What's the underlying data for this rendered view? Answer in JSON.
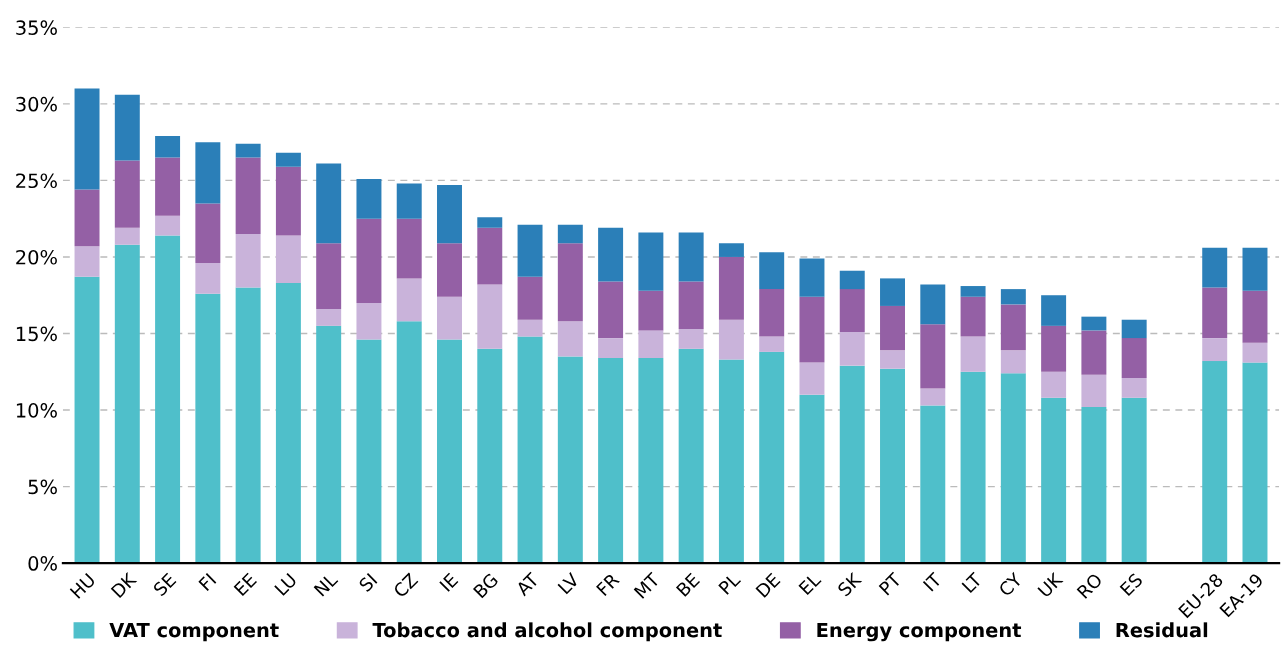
{
  "chart_data": {
    "type": "bar",
    "stacked": true,
    "categories": [
      "HU",
      "DK",
      "SE",
      "FI",
      "EE",
      "LU",
      "NL",
      "SI",
      "CZ",
      "IE",
      "BG",
      "AT",
      "LV",
      "FR",
      "MT",
      "BE",
      "PL",
      "DE",
      "EL",
      "SK",
      "PT",
      "IT",
      "LT",
      "CY",
      "UK",
      "RO",
      "ES",
      null,
      "EU-28",
      "EA-19"
    ],
    "series": [
      {
        "name": "VAT component",
        "color": "#4fbfca",
        "values": [
          18.7,
          20.8,
          21.4,
          17.6,
          18.0,
          18.3,
          15.5,
          14.6,
          15.8,
          14.6,
          14.0,
          14.8,
          13.5,
          13.4,
          13.4,
          14.0,
          13.3,
          13.8,
          11.0,
          12.9,
          12.7,
          10.3,
          12.5,
          12.4,
          10.8,
          10.2,
          10.8,
          null,
          13.2,
          13.1
        ]
      },
      {
        "name": "Tobacco and alcohol component",
        "color": "#c9b3da",
        "values": [
          2.0,
          1.1,
          1.3,
          2.0,
          3.5,
          3.1,
          1.1,
          2.4,
          2.8,
          2.8,
          4.2,
          1.1,
          2.3,
          1.3,
          1.8,
          1.3,
          2.6,
          1.0,
          2.1,
          2.2,
          1.2,
          1.1,
          2.3,
          1.5,
          1.7,
          2.1,
          1.3,
          null,
          1.5,
          1.3
        ]
      },
      {
        "name": "Energy component",
        "color": "#9460a5",
        "values": [
          3.7,
          4.4,
          3.8,
          3.9,
          5.0,
          4.5,
          4.3,
          5.5,
          3.9,
          3.5,
          3.7,
          2.8,
          5.1,
          3.7,
          2.6,
          3.1,
          4.1,
          3.1,
          4.3,
          2.8,
          2.9,
          4.2,
          2.6,
          3.0,
          3.0,
          2.9,
          2.6,
          null,
          3.3,
          3.4
        ]
      },
      {
        "name": "Residual",
        "color": "#2b7fb8",
        "values": [
          6.6,
          4.3,
          1.4,
          4.0,
          0.9,
          0.9,
          5.2,
          2.6,
          2.3,
          3.8,
          0.7,
          3.4,
          1.2,
          3.5,
          3.8,
          3.2,
          0.9,
          2.4,
          2.5,
          1.2,
          1.8,
          2.6,
          0.7,
          1.0,
          2.0,
          0.9,
          1.2,
          null,
          2.6,
          2.8
        ]
      }
    ],
    "ylim": [
      0,
      35
    ],
    "yticks": [
      {
        "value": 0,
        "label": "0%"
      },
      {
        "value": 5,
        "label": "5%"
      },
      {
        "value": 10,
        "label": "10%"
      },
      {
        "value": 15,
        "label": "15%"
      },
      {
        "value": 20,
        "label": "20%"
      },
      {
        "value": 25,
        "label": "25%"
      },
      {
        "value": 30,
        "label": "30%"
      },
      {
        "value": 35,
        "label": "35%"
      }
    ],
    "grid": "y",
    "legend": "bottom"
  }
}
